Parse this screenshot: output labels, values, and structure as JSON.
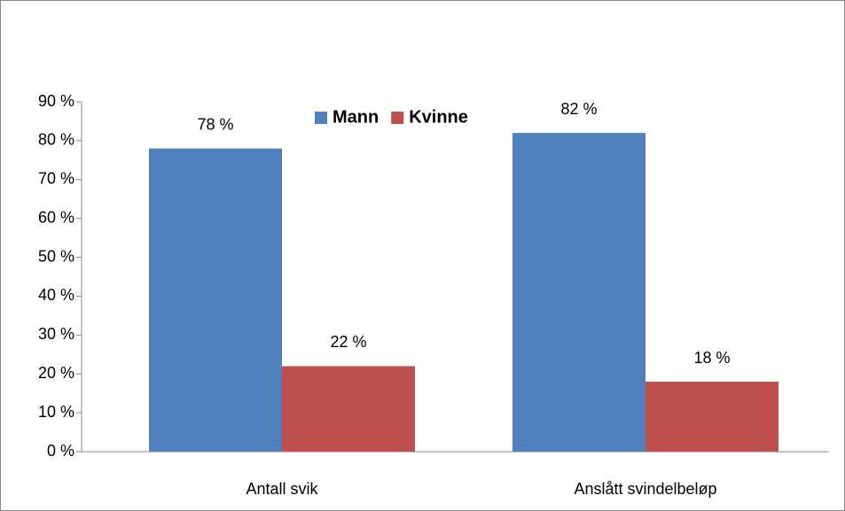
{
  "chart_data": {
    "type": "bar",
    "categories": [
      "Antall svik",
      "Anslått svindelbeløp"
    ],
    "series": [
      {
        "name": "Mann",
        "color": "#4f81bd",
        "values": [
          78,
          82
        ],
        "value_labels": [
          "78 %",
          "82 %"
        ]
      },
      {
        "name": "Kvinne",
        "color": "#c0504d",
        "values": [
          22,
          18
        ],
        "value_labels": [
          "22 %",
          "18 %"
        ]
      }
    ],
    "ylim": [
      0,
      90
    ],
    "yticks": [
      {
        "value": 0,
        "label": "0 %"
      },
      {
        "value": 10,
        "label": "10 %"
      },
      {
        "value": 20,
        "label": "20 %"
      },
      {
        "value": 30,
        "label": "30 %"
      },
      {
        "value": 40,
        "label": "40 %"
      },
      {
        "value": 50,
        "label": "50 %"
      },
      {
        "value": 60,
        "label": "60 %"
      },
      {
        "value": 70,
        "label": "70 %"
      },
      {
        "value": 80,
        "label": "80 %"
      },
      {
        "value": 90,
        "label": "90 %"
      }
    ],
    "legend": "top"
  }
}
